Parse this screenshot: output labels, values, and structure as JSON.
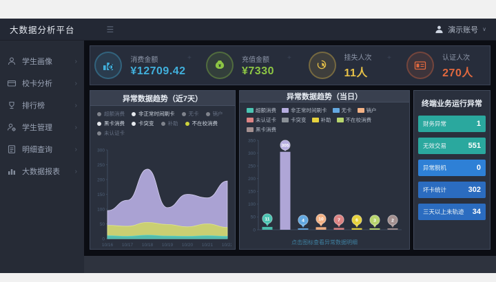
{
  "header": {
    "app_title": "大数据分析平台",
    "user_name": "演示账号",
    "caret": "∨"
  },
  "sidebar": {
    "items": [
      {
        "label": "学生画像",
        "icon": "student-portrait-icon"
      },
      {
        "label": "校卡分析",
        "icon": "card-analysis-icon"
      },
      {
        "label": "排行榜",
        "icon": "ranking-icon"
      },
      {
        "label": "学生管理",
        "icon": "student-manage-icon"
      },
      {
        "label": "明细查询",
        "icon": "detail-query-icon"
      },
      {
        "label": "大数据报表",
        "icon": "report-icon"
      }
    ]
  },
  "kpis": [
    {
      "label": "消费金额",
      "value": "¥12709.42",
      "color": "#41b0dc",
      "icon": "consumption-icon"
    },
    {
      "label": "充值金额",
      "value": "¥7330",
      "color": "#8dc644",
      "icon": "recharge-icon"
    },
    {
      "label": "挂失人次",
      "value": "11人",
      "color": "#e7c148",
      "icon": "loss-report-icon"
    },
    {
      "label": "认证人次",
      "value": "270人",
      "color": "#e2693f",
      "icon": "certification-icon"
    }
  ],
  "chart_data": [
    {
      "type": "area",
      "title": "异常数据趋势（近7天）",
      "x": [
        "10/16",
        "10/17",
        "10/18",
        "10/19",
        "10/20",
        "10/21",
        "10/22"
      ],
      "ylim": [
        0,
        300
      ],
      "ytick_step": 50,
      "legend": [
        {
          "label": "超额消费",
          "dim": true,
          "dot": "#e6e9ee"
        },
        {
          "label": "非正常时间刷卡",
          "dim": false,
          "dot": "#e6e9ee"
        },
        {
          "label": "无卡",
          "dim": true,
          "dot": "#e6e9ee"
        },
        {
          "label": "销户",
          "dim": true,
          "dot": "#e6e9ee"
        },
        {
          "label": "黑卡消费",
          "dim": false,
          "dot": "#e6e9ee"
        },
        {
          "label": "卡突变",
          "dim": false,
          "dot": "#e6e9ee"
        },
        {
          "label": "补助",
          "dim": true,
          "dot": "#e6e9ee"
        },
        {
          "label": "不在校消费",
          "dim": false,
          "dot": "#cdd23c"
        },
        {
          "label": "未认证卡",
          "dim": true,
          "dot": "#e6e9ee"
        }
      ],
      "series": [
        {
          "name": "非正常时间刷卡",
          "fill": "#b4abdf",
          "stroke": "#d8d2f1",
          "values": [
            95,
            130,
            235,
            105,
            150,
            138,
            195
          ]
        },
        {
          "name": "不在校消费",
          "fill": "#ccd26a",
          "stroke": "#e0e68a",
          "values": [
            45,
            42,
            55,
            48,
            40,
            50,
            38
          ]
        },
        {
          "name": "超额消费",
          "fill": "#49b9b0",
          "stroke": "#5fd4ca",
          "values": [
            10,
            8,
            12,
            9,
            8,
            10,
            8
          ]
        }
      ]
    },
    {
      "type": "bar",
      "title": "异常数据趋势（当日）",
      "ylim": [
        0,
        350
      ],
      "ytick_step": 50,
      "caption": "点击图标查看异常数据明细",
      "legend": [
        {
          "label": "超额消费",
          "color": "#4cc4b2"
        },
        {
          "label": "非正常时间刷卡",
          "color": "#b6addf"
        },
        {
          "label": "无卡",
          "color": "#64a8e0"
        },
        {
          "label": "销户",
          "color": "#f3b285"
        },
        {
          "label": "未认证卡",
          "color": "#dd8484"
        },
        {
          "label": "卡突变",
          "color": "#8a9097"
        },
        {
          "label": "补助",
          "color": "#e6d23e"
        },
        {
          "label": "不在校消费",
          "color": "#b8d56e"
        },
        {
          "label": "黑卡消费",
          "color": "#a39090"
        }
      ],
      "bars": [
        {
          "label": "超额消费",
          "value": 11,
          "color": "#4cc4b2"
        },
        {
          "label": "非正常时间刷卡",
          "value": 305,
          "color": "#b6addf"
        },
        {
          "label": "无卡",
          "value": 4,
          "color": "#64a8e0"
        },
        {
          "label": "销户",
          "value": 10,
          "color": "#f3b285"
        },
        {
          "label": "未认证卡",
          "value": 7,
          "color": "#dd8484"
        },
        {
          "label": "补助",
          "value": 6,
          "color": "#e6d23e"
        },
        {
          "label": "不在校消费",
          "value": 3,
          "color": "#b8d56e"
        },
        {
          "label": "黑卡消费",
          "value": 2,
          "color": "#a39090"
        }
      ]
    }
  ],
  "stats": {
    "title": "终端业务运行异常",
    "rows": [
      {
        "label": "财务异常",
        "value": "1",
        "color": "#2aa89e"
      },
      {
        "label": "无效交易",
        "value": "551",
        "color": "#2aa89e"
      },
      {
        "label": "异常脱机",
        "value": "0",
        "color": "#2e80d6"
      },
      {
        "label": "坏卡统计",
        "value": "302",
        "color": "#2b6cc0"
      },
      {
        "label": "三天以上未轨迹",
        "value": "34",
        "color": "#2b6cc0"
      }
    ]
  }
}
